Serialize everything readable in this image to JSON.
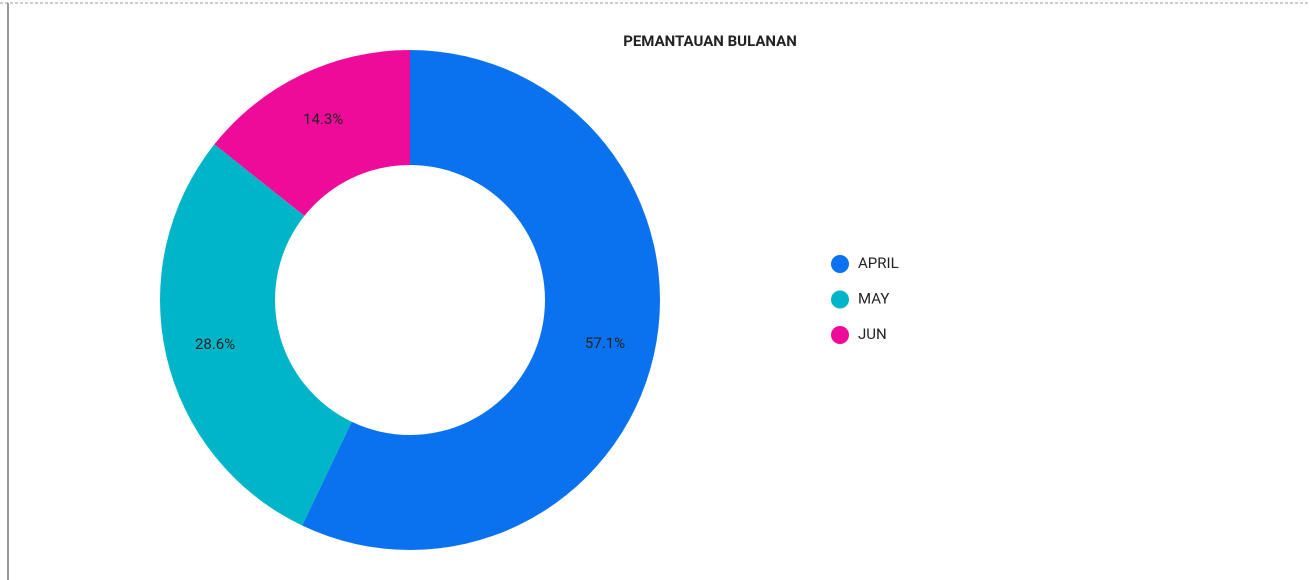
{
  "chart_data": {
    "type": "donut",
    "title": "PEMANTAUAN BULANAN",
    "categories": [
      "APRIL",
      "MAY",
      "JUN"
    ],
    "values": [
      57.1,
      28.6,
      14.3
    ],
    "value_labels": [
      "57.1%",
      "28.6%",
      "14.3%"
    ],
    "colors": [
      "#0a72ef",
      "#00b5c8",
      "#ee0b99"
    ],
    "legend": "right"
  }
}
